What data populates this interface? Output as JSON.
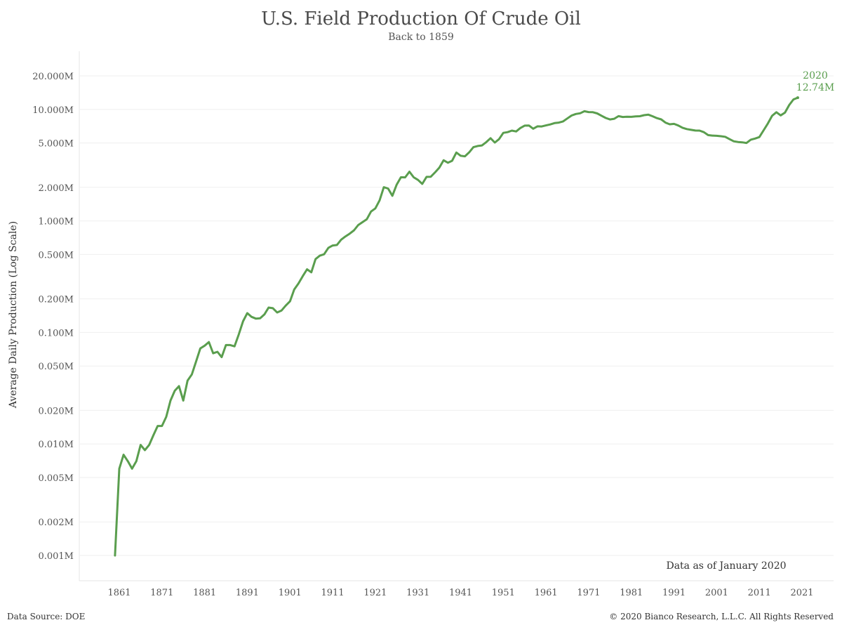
{
  "chart_data": {
    "type": "line",
    "title": "U.S. Field Production Of Crude Oil",
    "subtitle": "Back to 1859",
    "ylabel": "Average Daily Production (Log Scale)",
    "xlabel": "",
    "y_scale": "log",
    "ylim": [
      0.001,
      20
    ],
    "y_unit": "million barrels per day",
    "y_ticks": [
      0.001,
      0.002,
      0.005,
      0.01,
      0.02,
      0.05,
      0.1,
      0.2,
      0.5,
      1,
      2,
      5,
      10,
      20
    ],
    "y_tick_labels": [
      "0.001M",
      "0.002M",
      "0.005M",
      "0.010M",
      "0.020M",
      "0.050M",
      "0.100M",
      "0.200M",
      "0.500M",
      "1.000M",
      "2.000M",
      "5.000M",
      "10.000M",
      "20.000M"
    ],
    "x_ticks": [
      1861,
      1871,
      1881,
      1891,
      1901,
      1911,
      1921,
      1931,
      1941,
      1951,
      1961,
      1971,
      1981,
      1991,
      2001,
      2011,
      2021
    ],
    "x_tick_labels": [
      "1861",
      "1871",
      "1881",
      "1891",
      "1901",
      "1911",
      "1921",
      "1931",
      "1941",
      "1951",
      "1961",
      "1971",
      "1981",
      "1991",
      "2001",
      "2011",
      "2021"
    ],
    "grid": "horizontal",
    "color": "#5a9e4e",
    "series": [
      {
        "x": [
          1860,
          1861,
          1862,
          1863,
          1864,
          1865,
          1866,
          1867,
          1868,
          1869,
          1870,
          1871,
          1872,
          1873,
          1874,
          1875,
          1876,
          1877,
          1878,
          1879,
          1880,
          1881,
          1882,
          1883,
          1884,
          1885,
          1886,
          1887,
          1888,
          1889,
          1890,
          1891,
          1892,
          1893,
          1894,
          1895,
          1896,
          1897,
          1898,
          1899,
          1900,
          1901,
          1902,
          1903,
          1904,
          1905,
          1906,
          1907,
          1908,
          1909,
          1910,
          1911,
          1912,
          1913,
          1914,
          1915,
          1916,
          1917,
          1918,
          1919,
          1920,
          1921,
          1922,
          1923,
          1924,
          1925,
          1926,
          1927,
          1928,
          1929,
          1930,
          1931,
          1932,
          1933,
          1934,
          1935,
          1936,
          1937,
          1938,
          1939,
          1940,
          1941,
          1942,
          1943,
          1944,
          1945,
          1946,
          1947,
          1948,
          1949,
          1950,
          1951,
          1952,
          1953,
          1954,
          1955,
          1956,
          1957,
          1958,
          1959,
          1960,
          1961,
          1962,
          1963,
          1964,
          1965,
          1966,
          1967,
          1968,
          1969,
          1970,
          1971,
          1972,
          1973,
          1974,
          1975,
          1976,
          1977,
          1978,
          1979,
          1980,
          1981,
          1982,
          1983,
          1984,
          1985,
          1986,
          1987,
          1988,
          1989,
          1990,
          1991,
          1992,
          1993,
          1994,
          1995,
          1996,
          1997,
          1998,
          1999,
          2000,
          2001,
          2002,
          2003,
          2004,
          2005,
          2006,
          2007,
          2008,
          2009,
          2010,
          2011,
          2012,
          2013,
          2014,
          2015,
          2016,
          2017,
          2018,
          2019,
          2020
        ],
        "values": [
          0.001,
          0.006,
          0.008,
          0.007,
          0.006,
          0.007,
          0.0098,
          0.0088,
          0.0098,
          0.012,
          0.0145,
          0.0145,
          0.0175,
          0.0245,
          0.03,
          0.033,
          0.0245,
          0.037,
          0.042,
          0.055,
          0.072,
          0.076,
          0.082,
          0.065,
          0.067,
          0.06,
          0.077,
          0.077,
          0.075,
          0.096,
          0.126,
          0.149,
          0.138,
          0.133,
          0.134,
          0.145,
          0.167,
          0.165,
          0.151,
          0.157,
          0.174,
          0.19,
          0.243,
          0.275,
          0.32,
          0.368,
          0.346,
          0.455,
          0.488,
          0.502,
          0.574,
          0.602,
          0.608,
          0.679,
          0.726,
          0.769,
          0.824,
          0.918,
          0.974,
          1.034,
          1.214,
          1.295,
          1.53,
          2.007,
          1.952,
          1.681,
          2.112,
          2.466,
          2.459,
          2.762,
          2.46,
          2.332,
          2.148,
          2.481,
          2.488,
          2.725,
          3.0,
          3.5,
          3.327,
          3.462,
          4.107,
          3.842,
          3.796,
          4.125,
          4.584,
          4.695,
          4.751,
          5.088,
          5.52,
          5.046,
          5.407,
          6.158,
          6.256,
          6.458,
          6.342,
          6.807,
          7.151,
          7.17,
          6.71,
          7.054,
          7.035,
          7.183,
          7.332,
          7.542,
          7.614,
          7.804,
          8.295,
          8.81,
          9.096,
          9.238,
          9.637,
          9.463,
          9.441,
          9.208,
          8.774,
          8.375,
          8.132,
          8.245,
          8.707,
          8.552,
          8.597,
          8.572,
          8.649,
          8.688,
          8.879,
          8.971,
          8.68,
          8.349,
          8.14,
          7.613,
          7.355,
          7.417,
          7.171,
          6.847,
          6.662,
          6.56,
          6.465,
          6.452,
          6.252,
          5.881,
          5.822,
          5.801,
          5.746,
          5.681,
          5.419,
          5.178,
          5.102,
          5.064,
          5.0,
          5.353,
          5.478,
          5.645,
          6.505,
          7.467,
          8.759,
          9.431,
          8.845,
          9.352,
          10.953,
          12.29,
          12.74
        ]
      }
    ],
    "end_label_year": "2020",
    "end_label_value": "12.74M",
    "annotation": "Data as of January 2020"
  },
  "footer": {
    "source": "Data Source: DOE",
    "copyright": "© 2020 Bianco Research, L.L.C. All Rights Reserved"
  }
}
